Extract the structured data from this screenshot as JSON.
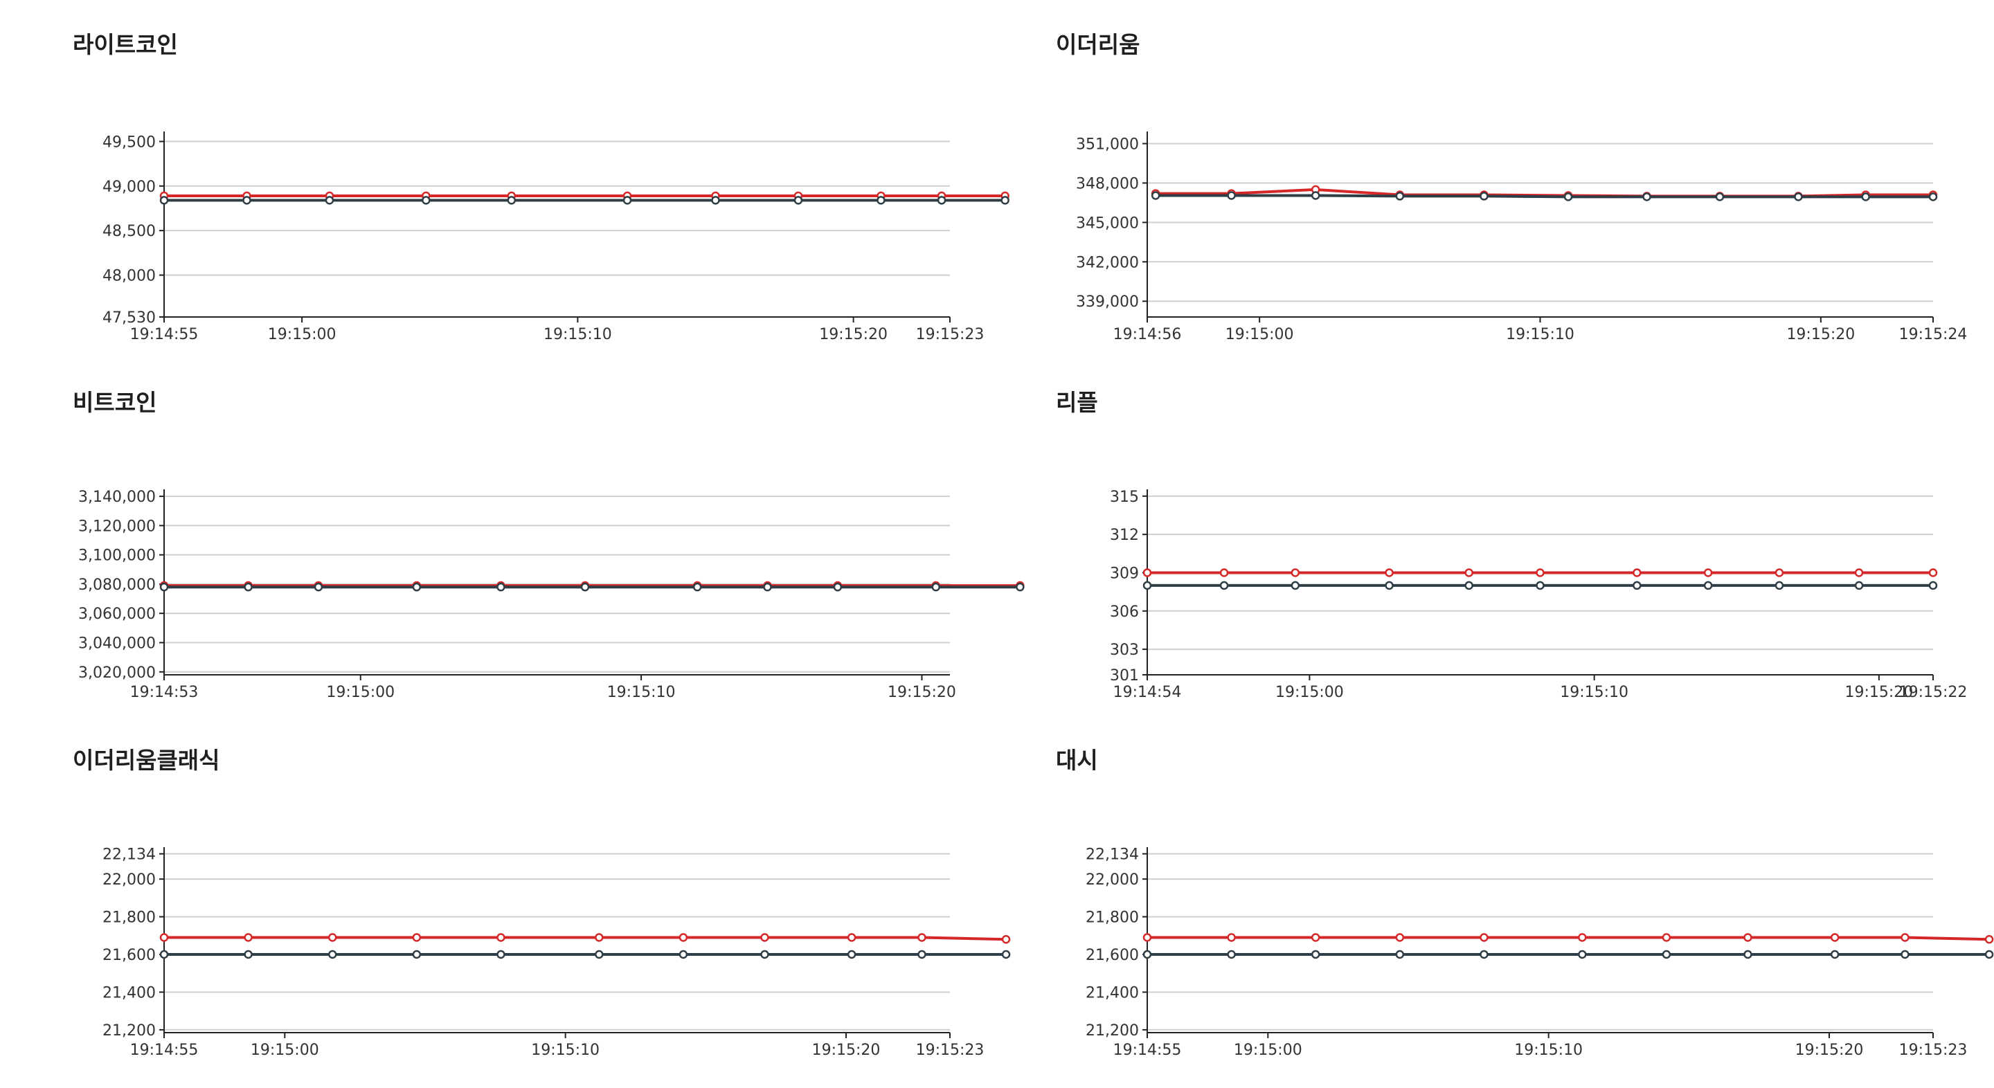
{
  "series_colors": {
    "sell": "#d62728",
    "buy": "#2f3e46"
  },
  "chart_data": [
    {
      "type": "line",
      "title": "라이트코인",
      "x": [
        "19:14:55",
        "19:14:58",
        "19:15:01",
        "19:15:04",
        "19:15:07",
        "19:15:10",
        "19:15:13",
        "19:15:16",
        "19:15:19",
        "19:15:21",
        "19:15:23"
      ],
      "x_seconds": [
        0,
        3,
        6,
        9.5,
        12.6,
        16.8,
        20,
        23,
        26,
        28.2,
        30.5
      ],
      "x_ticks": [
        "19:14:55",
        "19:15:00",
        "19:15:10",
        "19:15:20",
        "19:15:23"
      ],
      "x_tick_seconds": [
        0,
        5,
        15,
        25,
        28.5
      ],
      "x_range": [
        0,
        28.5
      ],
      "y_ticks": [
        "49,500",
        "49,000",
        "48,500",
        "48,000",
        "47,530"
      ],
      "y_tick_values": [
        49500,
        49000,
        48500,
        48000,
        47530
      ],
      "ylim": [
        47530,
        49550
      ],
      "series": [
        {
          "color": "#d62728",
          "values": [
            48890,
            48890,
            48890,
            48890,
            48890,
            48890,
            48890,
            48890,
            48890,
            48890,
            48890
          ]
        },
        {
          "color": "#2f3e46",
          "values": [
            48840,
            48840,
            48840,
            48840,
            48840,
            48840,
            48840,
            48840,
            48840,
            48840,
            48840
          ]
        }
      ]
    },
    {
      "type": "line",
      "title": "이더리움",
      "x": [
        "19:14:56",
        "19:14:59",
        "19:15:02",
        "19:15:05",
        "19:15:08",
        "19:15:11",
        "19:15:14",
        "19:15:17",
        "19:15:19",
        "19:15:21",
        "19:15:24"
      ],
      "x_seconds": [
        0.3,
        3,
        6,
        9,
        12,
        15,
        17.8,
        20.4,
        23.2,
        25.6,
        28
      ],
      "x_ticks": [
        "19:14:56",
        "19:15:00",
        "19:15:10",
        "19:15:20",
        "19:15:24"
      ],
      "x_tick_seconds": [
        0,
        4,
        14,
        24,
        28
      ],
      "x_range": [
        0,
        28
      ],
      "y_ticks": [
        "351,000",
        "348,000",
        "345,000",
        "342,000",
        "339,000"
      ],
      "y_tick_values": [
        351000,
        348000,
        345000,
        342000,
        339000
      ],
      "ylim": [
        337800,
        351500
      ],
      "series": [
        {
          "color": "#d62728",
          "values": [
            347200,
            347200,
            347500,
            347100,
            347100,
            347050,
            347000,
            347000,
            347000,
            347100,
            347100
          ]
        },
        {
          "color": "#2f3e46",
          "values": [
            347050,
            347050,
            347050,
            347000,
            347000,
            346950,
            346950,
            346950,
            346950,
            346950,
            346950
          ]
        }
      ]
    },
    {
      "type": "line",
      "title": "비트코인",
      "x": [
        "19:14:53",
        "19:14:56",
        "19:14:59",
        "19:15:02",
        "19:15:05",
        "19:15:08",
        "19:15:12",
        "19:15:14",
        "19:15:17",
        "19:15:20",
        "19:15:21"
      ],
      "x_seconds": [
        0,
        3,
        5.5,
        9,
        12,
        15,
        19,
        21.5,
        24,
        27.5,
        30.5
      ],
      "x_ticks": [
        "19:14:53",
        "19:15:00",
        "19:15:10",
        "19:15:20"
      ],
      "x_tick_seconds": [
        0,
        7,
        17,
        27
      ],
      "x_range": [
        0,
        28
      ],
      "y_ticks": [
        "3,140,000",
        "3,120,000",
        "3,100,000",
        "3,080,000",
        "3,060,000",
        "3,040,000",
        "3,020,000"
      ],
      "y_tick_values": [
        3140000,
        3120000,
        3100000,
        3080000,
        3060000,
        3040000,
        3020000
      ],
      "ylim": [
        3018000,
        3141000
      ],
      "series": [
        {
          "color": "#d62728",
          "values": [
            3079000,
            3079000,
            3079000,
            3079000,
            3079000,
            3079000,
            3079000,
            3079000,
            3079000,
            3079000,
            3079000
          ]
        },
        {
          "color": "#2f3e46",
          "values": [
            3078000,
            3078000,
            3078000,
            3078000,
            3078000,
            3078000,
            3078000,
            3078000,
            3078000,
            3078000,
            3078000
          ]
        }
      ]
    },
    {
      "type": "line",
      "title": "리플",
      "x": [
        "19:14:54",
        "19:14:57",
        "19:15:00",
        "19:15:03",
        "19:15:06",
        "19:15:09",
        "19:15:12",
        "19:15:15",
        "19:15:18",
        "19:15:20",
        "19:15:22"
      ],
      "x_seconds": [
        0,
        2.7,
        5.2,
        8.5,
        11.3,
        13.8,
        17.2,
        19.7,
        22.2,
        25,
        27.6
      ],
      "x_ticks": [
        "19:14:54",
        "19:15:00",
        "19:15:10",
        "19:15:20",
        "19:15:22"
      ],
      "x_tick_seconds": [
        0,
        5.7,
        15.7,
        25.7,
        27.6
      ],
      "x_range": [
        0,
        27.6
      ],
      "y_ticks": [
        "315",
        "312",
        "309",
        "306",
        "303",
        "301"
      ],
      "y_tick_values": [
        315,
        312,
        309,
        306,
        303,
        301
      ],
      "ylim": [
        301,
        315.1
      ],
      "series": [
        {
          "color": "#d62728",
          "values": [
            309,
            309,
            309,
            309,
            309,
            309,
            309,
            309,
            309,
            309,
            309
          ]
        },
        {
          "color": "#2f3e46",
          "values": [
            308,
            308,
            308,
            308,
            308,
            308,
            308,
            308,
            308,
            308,
            308
          ]
        }
      ]
    },
    {
      "type": "line",
      "title": "이더리움클래식",
      "x": [
        "19:14:55",
        "19:14:58",
        "19:15:01",
        "19:15:04",
        "19:15:07",
        "19:15:10",
        "19:15:13",
        "19:15:16",
        "19:15:19",
        "19:15:21",
        "19:15:23"
      ],
      "x_seconds": [
        0,
        3,
        6,
        9,
        12,
        15.5,
        18.5,
        21.4,
        24.5,
        27,
        30
      ],
      "x_ticks": [
        "19:14:55",
        "19:15:00",
        "19:15:10",
        "19:15:20",
        "19:15:23"
      ],
      "x_tick_seconds": [
        0,
        4.3,
        14.3,
        24.3,
        28
      ],
      "x_range": [
        0,
        28
      ],
      "y_ticks": [
        "22,134",
        "22,000",
        "21,800",
        "21,600",
        "21,400",
        "21,200"
      ],
      "y_tick_values": [
        22134,
        22000,
        21800,
        21600,
        21400,
        21200
      ],
      "ylim": [
        21185,
        22140
      ],
      "series": [
        {
          "color": "#d62728",
          "values": [
            21690,
            21690,
            21690,
            21690,
            21690,
            21690,
            21690,
            21690,
            21690,
            21690,
            21680
          ]
        },
        {
          "color": "#2f3e46",
          "values": [
            21600,
            21600,
            21600,
            21600,
            21600,
            21600,
            21600,
            21600,
            21600,
            21600,
            21600
          ]
        }
      ]
    },
    {
      "type": "line",
      "title": "대시",
      "x": [
        "19:14:55",
        "19:14:58",
        "19:15:01",
        "19:15:04",
        "19:15:07",
        "19:15:10",
        "19:15:13",
        "19:15:16",
        "19:15:19",
        "19:15:21",
        "19:15:23"
      ],
      "x_seconds": [
        0,
        3,
        6,
        9,
        12,
        15.5,
        18.5,
        21.4,
        24.5,
        27,
        30
      ],
      "x_ticks": [
        "19:14:55",
        "19:15:00",
        "19:15:10",
        "19:15:20",
        "19:15:23"
      ],
      "x_tick_seconds": [
        0,
        4.3,
        14.3,
        24.3,
        28
      ],
      "x_range": [
        0,
        28
      ],
      "y_ticks": [
        "22,134",
        "22,000",
        "21,800",
        "21,600",
        "21,400",
        "21,200"
      ],
      "y_tick_values": [
        22134,
        22000,
        21800,
        21600,
        21400,
        21200
      ],
      "ylim": [
        21185,
        22140
      ],
      "series": [
        {
          "color": "#d62728",
          "values": [
            21690,
            21690,
            21690,
            21690,
            21690,
            21690,
            21690,
            21690,
            21690,
            21690,
            21680
          ]
        },
        {
          "color": "#2f3e46",
          "values": [
            21600,
            21600,
            21600,
            21600,
            21600,
            21600,
            21600,
            21600,
            21600,
            21600,
            21600
          ]
        }
      ]
    }
  ]
}
